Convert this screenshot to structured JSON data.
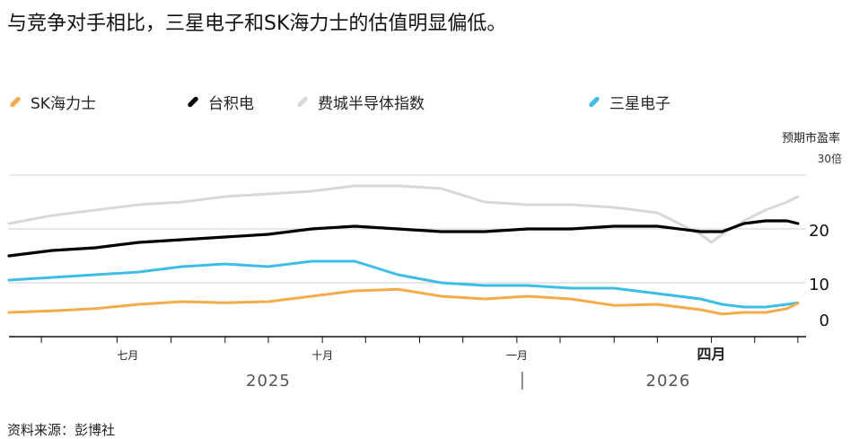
{
  "header": {
    "title": "与竞争对手相比，三星电子和SK海力士的估值明显偏低。"
  },
  "footer": {
    "source": "资料来源：彭博社"
  },
  "chart_data": {
    "type": "line",
    "title": "与竞争对手相比，三星电子和SK海力士的估值明显偏低。",
    "ylabel": "预期市盈率",
    "y_unit_label": "30倍",
    "ylim": [
      0,
      30
    ],
    "yticks": [
      {
        "value": 30,
        "label": "30倍"
      },
      {
        "value": 20,
        "label": "20"
      },
      {
        "value": 10,
        "label": "10"
      },
      {
        "value": 0,
        "label": "0"
      }
    ],
    "xlim": [
      0,
      76
    ],
    "x_unit": "week index from start of series (approx. mid-May 2025)",
    "month_ticks": [
      3,
      10,
      15,
      20,
      24,
      29,
      33,
      38,
      42,
      47,
      51,
      56,
      60,
      65,
      69,
      73
    ],
    "month_labels": [
      {
        "x": 11,
        "label": "七月",
        "bold": false
      },
      {
        "x": 29,
        "label": "十月",
        "bold": false
      },
      {
        "x": 47,
        "label": "一月",
        "bold": false
      },
      {
        "x": 65,
        "label": "四月",
        "bold": true
      }
    ],
    "year_labels": [
      {
        "x": 24,
        "label": "2025"
      },
      {
        "x": 61,
        "label": "2026"
      }
    ],
    "year_divider_x": 47.5,
    "legend_position": "top",
    "grid": true,
    "series": [
      {
        "name": "SK海力士",
        "color": "#f2ac4a",
        "x": [
          0,
          4,
          8,
          12,
          16,
          20,
          24,
          28,
          32,
          36,
          40,
          44,
          48,
          52,
          56,
          60,
          64,
          66,
          68,
          70,
          72,
          73
        ],
        "values": [
          4.5,
          4.8,
          5.2,
          6.0,
          6.5,
          6.3,
          6.5,
          7.5,
          8.5,
          8.8,
          7.5,
          7.0,
          7.5,
          7.0,
          5.8,
          6.0,
          5.0,
          4.2,
          4.5,
          4.5,
          5.2,
          6.2
        ]
      },
      {
        "name": "台积电",
        "color": "#000000",
        "x": [
          0,
          4,
          8,
          12,
          16,
          20,
          24,
          28,
          32,
          36,
          40,
          44,
          48,
          52,
          56,
          60,
          64,
          66,
          68,
          70,
          72,
          73
        ],
        "values": [
          15.0,
          16.0,
          16.5,
          17.5,
          18.0,
          18.5,
          19.0,
          20.0,
          20.5,
          20.0,
          19.5,
          19.5,
          20.0,
          20.0,
          20.5,
          20.5,
          19.5,
          19.5,
          21.0,
          21.5,
          21.5,
          21.0
        ]
      },
      {
        "name": "费城半导体指数",
        "color": "#d8d8d8",
        "x": [
          0,
          4,
          8,
          12,
          16,
          20,
          24,
          28,
          32,
          36,
          40,
          44,
          48,
          52,
          56,
          60,
          64,
          65,
          66,
          68,
          70,
          72,
          73
        ],
        "values": [
          21.0,
          22.5,
          23.5,
          24.5,
          25.0,
          26.0,
          26.5,
          27.0,
          28.0,
          28.0,
          27.5,
          25.0,
          24.5,
          24.5,
          24.0,
          23.0,
          19.0,
          17.5,
          19.0,
          21.5,
          23.5,
          25.0,
          26.0
        ]
      },
      {
        "name": "三星电子",
        "color": "#3dbde6",
        "x": [
          0,
          4,
          8,
          12,
          16,
          20,
          24,
          28,
          32,
          36,
          40,
          44,
          48,
          52,
          56,
          60,
          64,
          66,
          68,
          70,
          72,
          73
        ],
        "values": [
          10.5,
          11.0,
          11.5,
          12.0,
          13.0,
          13.5,
          13.0,
          14.0,
          14.0,
          11.5,
          10.0,
          9.5,
          9.5,
          9.0,
          9.0,
          8.0,
          7.0,
          6.0,
          5.5,
          5.5,
          6.0,
          6.3
        ]
      }
    ]
  }
}
